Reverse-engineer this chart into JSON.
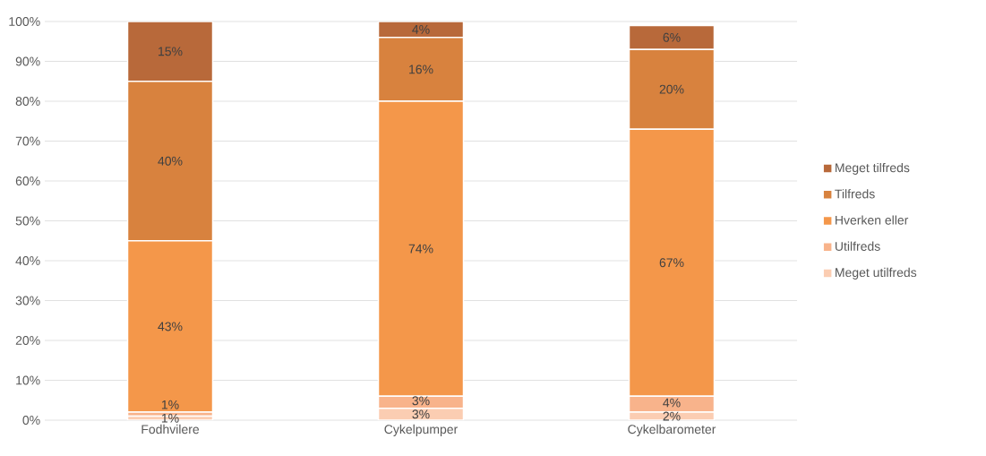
{
  "chart_data": {
    "type": "bar",
    "stacked": true,
    "categories": [
      "Fodhvilere",
      "Cykelpumper",
      "Cykelbarometer"
    ],
    "series": [
      {
        "name": "Meget utilfreds",
        "color": "#fbcdb2",
        "values": [
          1,
          3,
          2
        ],
        "value_labels": [
          "1%",
          "3%",
          "2%"
        ]
      },
      {
        "name": "Utilfreds",
        "color": "#f8b38b",
        "values": [
          1,
          3,
          4
        ],
        "value_labels": [
          "1%",
          "3%",
          "4%"
        ]
      },
      {
        "name": "Hverken eller",
        "color": "#f4974a",
        "values": [
          43,
          74,
          67
        ],
        "value_labels": [
          "43%",
          "74%",
          "67%"
        ]
      },
      {
        "name": "Tilfreds",
        "color": "#d8823e",
        "values": [
          40,
          16,
          20
        ],
        "value_labels": [
          "40%",
          "16%",
          "20%"
        ]
      },
      {
        "name": "Meget tilfreds",
        "color": "#b8693a",
        "values": [
          15,
          4,
          6
        ],
        "value_labels": [
          "15%",
          "4%",
          "6%"
        ]
      }
    ],
    "ylim": [
      0,
      100
    ],
    "yticks": [
      {
        "value": 0,
        "label": "0%"
      },
      {
        "value": 10,
        "label": "10%"
      },
      {
        "value": 20,
        "label": "20%"
      },
      {
        "value": 30,
        "label": "30%"
      },
      {
        "value": 40,
        "label": "40%"
      },
      {
        "value": 50,
        "label": "50%"
      },
      {
        "value": 60,
        "label": "60%"
      },
      {
        "value": 70,
        "label": "70%"
      },
      {
        "value": 80,
        "label": "80%"
      },
      {
        "value": 90,
        "label": "90%"
      },
      {
        "value": 100,
        "label": "100%"
      }
    ],
    "grid": "y",
    "legend": "right"
  }
}
